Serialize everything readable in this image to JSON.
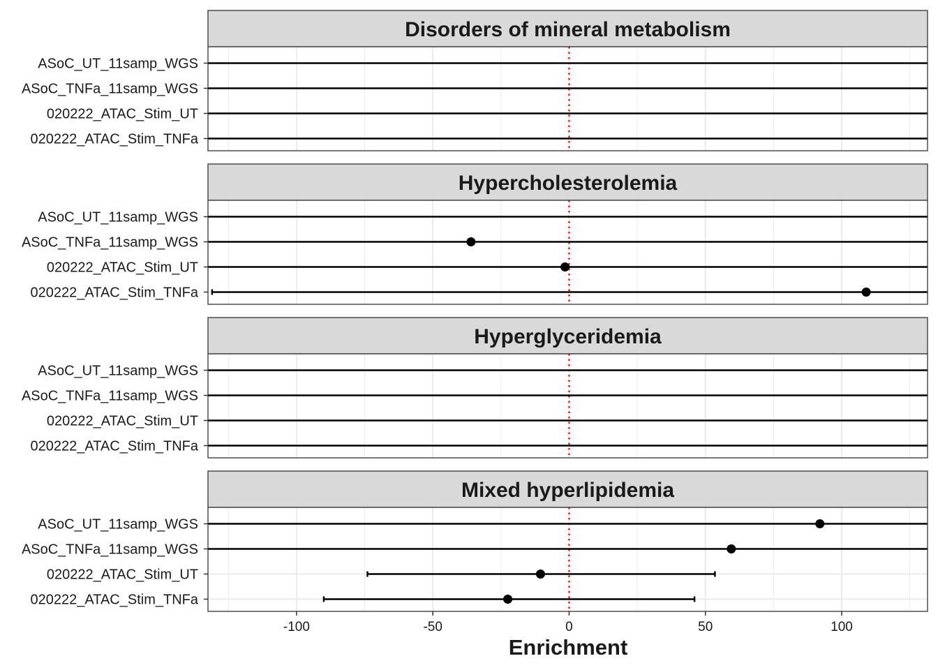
{
  "chart_data": {
    "type": "scatter",
    "subtype": "forest-plot-faceted",
    "xlabel": "Enrichment",
    "xlim": [
      -132.5,
      131.5
    ],
    "x_ticks": [
      -100,
      -50,
      0,
      50,
      100
    ],
    "x_tick_labels": [
      "-100",
      "-50",
      "0",
      "50",
      "100"
    ],
    "reference_line": {
      "x": 0,
      "color": "#e8191b",
      "style": "dotted"
    },
    "rows": [
      "ASoC_UT_11samp_WGS",
      "ASoC_TNFa_11samp_WGS",
      "020222_ATAC_Stim_UT",
      "020222_ATAC_Stim_TNFa"
    ],
    "grid": true,
    "colors": {
      "point": "#000000",
      "strip_fill": "#d9d9d9",
      "grid": "#ebebeb",
      "refline": "#e8191b"
    },
    "facets": [
      {
        "title": "Disorders of mineral metabolism",
        "points": [
          {
            "label": "ASoC_UT_11samp_WGS",
            "estimate": null,
            "lower": -140,
            "upper": 140
          },
          {
            "label": "ASoC_TNFa_11samp_WGS",
            "estimate": null,
            "lower": -140,
            "upper": 140
          },
          {
            "label": "020222_ATAC_Stim_UT",
            "estimate": null,
            "lower": -140,
            "upper": 140
          },
          {
            "label": "020222_ATAC_Stim_TNFa",
            "estimate": null,
            "lower": -140,
            "upper": 140
          }
        ]
      },
      {
        "title": "Hypercholesterolemia",
        "points": [
          {
            "label": "ASoC_UT_11samp_WGS",
            "estimate": null,
            "lower": -140,
            "upper": 140
          },
          {
            "label": "ASoC_TNFa_11samp_WGS",
            "estimate": -36,
            "lower": -140,
            "upper": 140
          },
          {
            "label": "020222_ATAC_Stim_UT",
            "estimate": -1.5,
            "lower": -140,
            "upper": 140
          },
          {
            "label": "020222_ATAC_Stim_TNFa",
            "estimate": 109,
            "lower": -131,
            "upper": 140
          }
        ]
      },
      {
        "title": "Hyperglyceridemia",
        "points": [
          {
            "label": "ASoC_UT_11samp_WGS",
            "estimate": null,
            "lower": -140,
            "upper": 140
          },
          {
            "label": "ASoC_TNFa_11samp_WGS",
            "estimate": null,
            "lower": -140,
            "upper": 140
          },
          {
            "label": "020222_ATAC_Stim_UT",
            "estimate": null,
            "lower": -140,
            "upper": 140
          },
          {
            "label": "020222_ATAC_Stim_TNFa",
            "estimate": null,
            "lower": -140,
            "upper": 140
          }
        ]
      },
      {
        "title": "Mixed hyperlipidemia",
        "points": [
          {
            "label": "ASoC_UT_11samp_WGS",
            "estimate": 92,
            "lower": -140,
            "upper": 140
          },
          {
            "label": "ASoC_TNFa_11samp_WGS",
            "estimate": 59.5,
            "lower": -140,
            "upper": 140
          },
          {
            "label": "020222_ATAC_Stim_UT",
            "estimate": -10.5,
            "lower": -74,
            "upper": 53.5
          },
          {
            "label": "020222_ATAC_Stim_TNFa",
            "estimate": -22.5,
            "lower": -90,
            "upper": 46
          }
        ]
      }
    ]
  }
}
